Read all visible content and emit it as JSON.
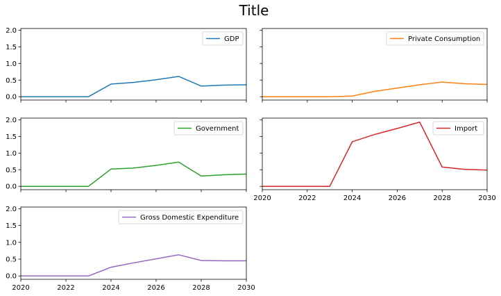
{
  "figure_title": "Title",
  "chart_data": [
    {
      "type": "line",
      "x": [
        2020,
        2021,
        2022,
        2023,
        2024,
        2025,
        2026,
        2027,
        2028,
        2029,
        2030
      ],
      "series": [
        {
          "name": "GDP",
          "color": "#1f77b4",
          "values": [
            0,
            0,
            0,
            0,
            0.38,
            0.43,
            0.51,
            0.61,
            0.32,
            0.35,
            0.36
          ]
        }
      ],
      "xlim": [
        2020,
        2030
      ],
      "ylim": [
        -0.1,
        2.05
      ],
      "xticks": [
        2020,
        2022,
        2024,
        2026,
        2028,
        2030
      ],
      "yticks": [
        "0.0",
        "0.5",
        "1.0",
        "1.5",
        "2.0"
      ],
      "show_x_tick_labels": false,
      "show_y_tick_labels": true,
      "legend": "top-right",
      "grid": false
    },
    {
      "type": "line",
      "x": [
        2020,
        2021,
        2022,
        2023,
        2024,
        2025,
        2026,
        2027,
        2028,
        2029,
        2030
      ],
      "series": [
        {
          "name": "Private Consumption",
          "color": "#ff7f0e",
          "values": [
            0,
            0,
            0,
            0,
            0.02,
            0.16,
            0.26,
            0.36,
            0.44,
            0.39,
            0.37
          ]
        }
      ],
      "xlim": [
        2020,
        2030
      ],
      "ylim": [
        -0.1,
        2.05
      ],
      "xticks": [
        2020,
        2022,
        2024,
        2026,
        2028,
        2030
      ],
      "yticks": [
        "0.0",
        "0.5",
        "1.0",
        "1.5",
        "2.0"
      ],
      "show_x_tick_labels": false,
      "show_y_tick_labels": false,
      "legend": "top-right",
      "grid": false
    },
    {
      "type": "line",
      "x": [
        2020,
        2021,
        2022,
        2023,
        2024,
        2025,
        2026,
        2027,
        2028,
        2029,
        2030
      ],
      "series": [
        {
          "name": "Government",
          "color": "#2ca02c",
          "values": [
            0,
            0,
            0,
            0,
            0.52,
            0.55,
            0.63,
            0.73,
            0.31,
            0.35,
            0.37
          ]
        }
      ],
      "xlim": [
        2020,
        2030
      ],
      "ylim": [
        -0.1,
        2.05
      ],
      "xticks": [
        2020,
        2022,
        2024,
        2026,
        2028,
        2030
      ],
      "yticks": [
        "0.0",
        "0.5",
        "1.0",
        "1.5",
        "2.0"
      ],
      "show_x_tick_labels": false,
      "show_y_tick_labels": true,
      "legend": "top-right",
      "grid": false
    },
    {
      "type": "line",
      "x": [
        2020,
        2021,
        2022,
        2023,
        2024,
        2025,
        2026,
        2027,
        2028,
        2029,
        2030
      ],
      "series": [
        {
          "name": "Import",
          "color": "#d62728",
          "values": [
            0,
            0,
            0,
            0,
            1.34,
            1.56,
            1.74,
            1.93,
            0.58,
            0.51,
            0.49
          ]
        }
      ],
      "xlim": [
        2020,
        2030
      ],
      "ylim": [
        -0.1,
        2.05
      ],
      "xticks": [
        2020,
        2022,
        2024,
        2026,
        2028,
        2030
      ],
      "yticks": [
        "0.0",
        "0.5",
        "1.0",
        "1.5",
        "2.0"
      ],
      "show_x_tick_labels": true,
      "show_y_tick_labels": false,
      "legend": "top-right",
      "grid": false
    },
    {
      "type": "line",
      "x": [
        2020,
        2021,
        2022,
        2023,
        2024,
        2025,
        2026,
        2027,
        2028,
        2029,
        2030
      ],
      "series": [
        {
          "name": "Gross Domestic Expenditure",
          "color": "#9467bd",
          "values": [
            0,
            0,
            0,
            0,
            0.26,
            0.39,
            0.51,
            0.63,
            0.46,
            0.45,
            0.45
          ]
        }
      ],
      "xlim": [
        2020,
        2030
      ],
      "ylim": [
        -0.1,
        2.05
      ],
      "xticks": [
        2020,
        2022,
        2024,
        2026,
        2028,
        2030
      ],
      "yticks": [
        "0.0",
        "0.5",
        "1.0",
        "1.5",
        "2.0"
      ],
      "show_x_tick_labels": true,
      "show_y_tick_labels": true,
      "legend": "top-right",
      "grid": false
    }
  ]
}
